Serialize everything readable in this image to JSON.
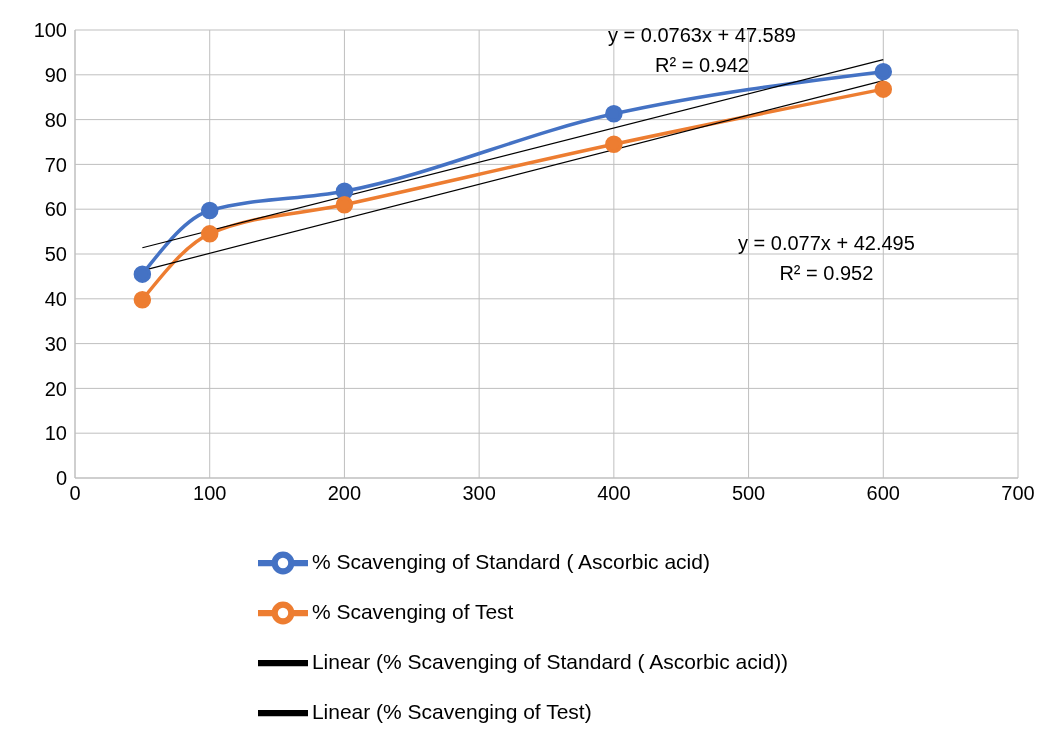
{
  "chart_data": {
    "type": "line",
    "xlim": [
      0,
      700
    ],
    "xticks": [
      0,
      100,
      200,
      300,
      400,
      500,
      600,
      700
    ],
    "ylim": [
      0,
      100
    ],
    "yticks": [
      0,
      10,
      20,
      30,
      40,
      50,
      60,
      70,
      80,
      90,
      100
    ],
    "grid": true,
    "legend": "bottom",
    "marker": "circle",
    "line_style": "solid",
    "series": [
      {
        "name": "% Scavenging of Standard ( Ascorbic acid)",
        "color": "#4472c4",
        "x": [
          50,
          100,
          200,
          400,
          600
        ],
        "values": [
          45.5,
          59.7,
          64,
          81.3,
          90.7
        ]
      },
      {
        "name": "% Scavenging of Test",
        "color": "#ed7d31",
        "x": [
          50,
          100,
          200,
          400,
          600
        ],
        "values": [
          39.8,
          54.5,
          61,
          74.5,
          86.8
        ]
      },
      {
        "name": "Linear (% Scavenging of Standard ( Ascorbic acid))",
        "type": "line",
        "marker": "none",
        "color": "#000000",
        "x": [
          50,
          600
        ],
        "values": [
          51.4,
          93.4
        ]
      },
      {
        "name": "Linear (% Scavenging of Test)",
        "type": "line",
        "marker": "none",
        "color": "#000000",
        "x": [
          50,
          600
        ],
        "values": [
          46.3,
          88.7
        ]
      }
    ],
    "annotations": [
      "y = 0.0763x + 47.589\nR² = 0.942",
      "y = 0.077x + 42.495\nR² = 0.952"
    ]
  }
}
